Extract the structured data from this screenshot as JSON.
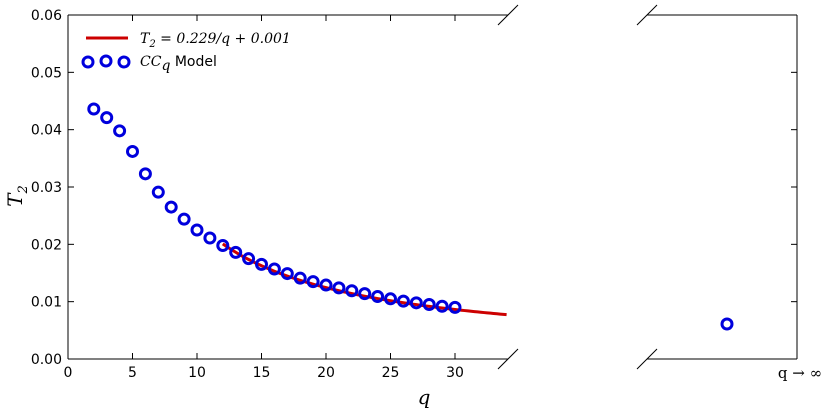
{
  "chart_data": {
    "type": "scatter",
    "xlabel": "q",
    "ylabel": "T",
    "ylabel_sub": "2",
    "xlim": [
      0,
      34
    ],
    "ylim": [
      0,
      0.06
    ],
    "xticks": [
      "0",
      "5",
      "10",
      "15",
      "20",
      "25",
      "30"
    ],
    "xtick_values": [
      0,
      5,
      10,
      15,
      20,
      25,
      30
    ],
    "yticks": [
      "0.00",
      "0.01",
      "0.02",
      "0.03",
      "0.04",
      "0.05",
      "0.06"
    ],
    "ytick_values": [
      0,
      0.01,
      0.02,
      0.03,
      0.04,
      0.05,
      0.06
    ],
    "series": [
      {
        "name": "CC_q Model",
        "kind": "scatter",
        "color": "#0000dd",
        "x": [
          2,
          3,
          4,
          5,
          6,
          7,
          8,
          9,
          10,
          11,
          12,
          13,
          14,
          15,
          16,
          17,
          18,
          19,
          20,
          21,
          22,
          23,
          24,
          25,
          26,
          27,
          28,
          29,
          30
        ],
        "y": [
          0.0436,
          0.0421,
          0.0398,
          0.0362,
          0.0323,
          0.0291,
          0.0265,
          0.0244,
          0.0225,
          0.0211,
          0.0198,
          0.0186,
          0.0175,
          0.0165,
          0.0157,
          0.0149,
          0.0141,
          0.0135,
          0.0129,
          0.0124,
          0.0119,
          0.0114,
          0.0109,
          0.0105,
          0.0101,
          0.0098,
          0.0095,
          0.0092,
          0.009
        ]
      },
      {
        "name": "T2 = 0.229/q + 0.001",
        "kind": "line",
        "color": "#cc0000",
        "x_range": [
          12,
          34
        ],
        "formula": {
          "a": 0.229,
          "b": 0.001
        }
      }
    ],
    "infinity_point": {
      "y": 0.0061
    },
    "infinity_label": "q → ∞",
    "legend": {
      "placement": "top-left",
      "entries": [
        {
          "main": "T",
          "sub": "2",
          "rest": " = 0.229/q + 0.001"
        },
        {
          "main": "CC",
          "sub": "q",
          "rest": " Model"
        }
      ]
    },
    "grid": false
  }
}
